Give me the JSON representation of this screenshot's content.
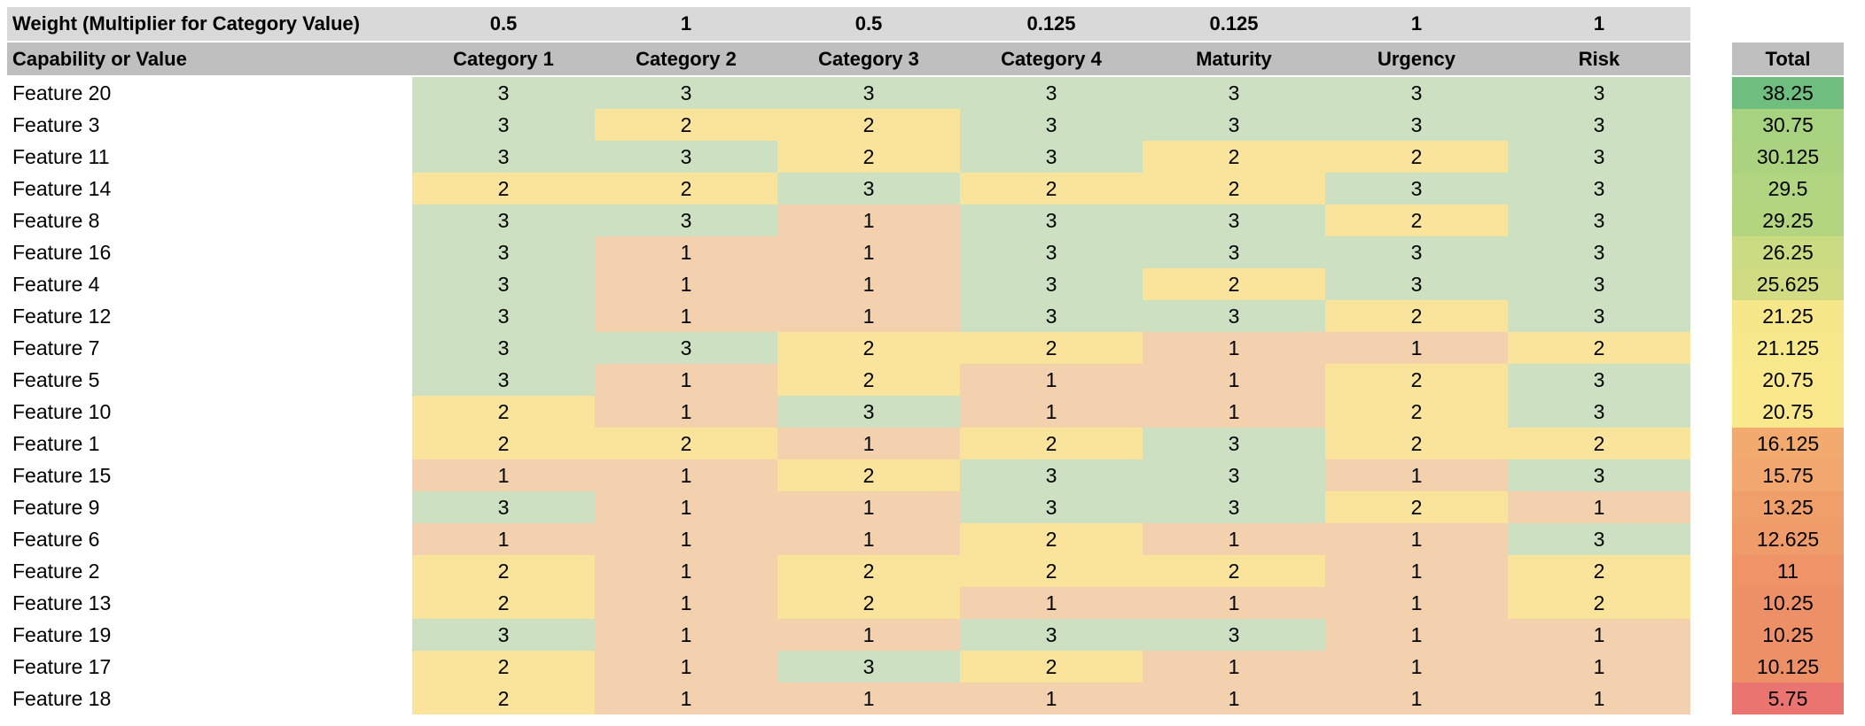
{
  "table": {
    "weight_row_label": "Weight (Multiplier for Category Value)",
    "capability_label": "Capability or Value",
    "weights": [
      "0.5",
      "1",
      "0.5",
      "0.125",
      "0.125",
      "1",
      "1"
    ],
    "columns": [
      "Category 1",
      "Category 2",
      "Category 3",
      "Category 4",
      "Maturity",
      "Urgency",
      "Risk"
    ],
    "total_label": "Total",
    "rows": [
      {
        "name": "Feature 20",
        "values": [
          3,
          3,
          3,
          3,
          3,
          3,
          3
        ],
        "total": "38.25",
        "total_color": "#6fbd7f"
      },
      {
        "name": "Feature 3",
        "values": [
          3,
          2,
          2,
          3,
          3,
          3,
          3
        ],
        "total": "30.75",
        "total_color": "#a7d27f"
      },
      {
        "name": "Feature 11",
        "values": [
          3,
          3,
          2,
          3,
          2,
          2,
          3
        ],
        "total": "30.125",
        "total_color": "#abd37f"
      },
      {
        "name": "Feature 14",
        "values": [
          2,
          2,
          3,
          2,
          2,
          3,
          3
        ],
        "total": "29.5",
        "total_color": "#b1d580"
      },
      {
        "name": "Feature 8",
        "values": [
          3,
          3,
          1,
          3,
          3,
          2,
          3
        ],
        "total": "29.25",
        "total_color": "#b3d580"
      },
      {
        "name": "Feature 16",
        "values": [
          3,
          1,
          1,
          3,
          3,
          3,
          3
        ],
        "total": "26.25",
        "total_color": "#cbdb81"
      },
      {
        "name": "Feature 4",
        "values": [
          3,
          1,
          1,
          3,
          2,
          3,
          3
        ],
        "total": "25.625",
        "total_color": "#d0dc82"
      },
      {
        "name": "Feature 12",
        "values": [
          3,
          1,
          1,
          3,
          3,
          2,
          3
        ],
        "total": "21.25",
        "total_color": "#f7e78b"
      },
      {
        "name": "Feature 7",
        "values": [
          3,
          3,
          2,
          2,
          1,
          1,
          2
        ],
        "total": "21.125",
        "total_color": "#f8e88c"
      },
      {
        "name": "Feature 5",
        "values": [
          3,
          1,
          2,
          1,
          1,
          2,
          3
        ],
        "total": "20.75",
        "total_color": "#f9e88c"
      },
      {
        "name": "Feature 10",
        "values": [
          2,
          1,
          3,
          1,
          1,
          2,
          3
        ],
        "total": "20.75",
        "total_color": "#f9e88c"
      },
      {
        "name": "Feature 1",
        "values": [
          2,
          2,
          1,
          2,
          3,
          2,
          2
        ],
        "total": "16.125",
        "total_color": "#f2aa6e"
      },
      {
        "name": "Feature 15",
        "values": [
          1,
          1,
          2,
          3,
          3,
          1,
          3
        ],
        "total": "15.75",
        "total_color": "#f1a76d"
      },
      {
        "name": "Feature 9",
        "values": [
          3,
          1,
          1,
          3,
          3,
          2,
          1
        ],
        "total": "13.25",
        "total_color": "#f09f6b"
      },
      {
        "name": "Feature 6",
        "values": [
          1,
          1,
          1,
          2,
          1,
          1,
          3
        ],
        "total": "12.625",
        "total_color": "#ef9c6a"
      },
      {
        "name": "Feature 2",
        "values": [
          2,
          1,
          2,
          2,
          2,
          1,
          2
        ],
        "total": "11",
        "total_color": "#ee9468"
      },
      {
        "name": "Feature 13",
        "values": [
          2,
          1,
          2,
          1,
          1,
          1,
          2
        ],
        "total": "10.25",
        "total_color": "#ed9067"
      },
      {
        "name": "Feature 19",
        "values": [
          3,
          1,
          1,
          3,
          3,
          1,
          1
        ],
        "total": "10.25",
        "total_color": "#ed9067"
      },
      {
        "name": "Feature 17",
        "values": [
          2,
          1,
          3,
          2,
          1,
          1,
          1
        ],
        "total": "10.125",
        "total_color": "#ed8f67"
      },
      {
        "name": "Feature 18",
        "values": [
          2,
          1,
          1,
          1,
          1,
          1,
          1
        ],
        "total": "5.75",
        "total_color": "#ea7470"
      }
    ]
  },
  "colors": {
    "header_row1_bg": "#d9d9d9",
    "header_row2_bg": "#bfbfbf",
    "score_colors": {
      "1": "#f3d0ae",
      "2": "#fae49c",
      "3": "#cde1c2"
    },
    "total_scale": {
      "min_color": "#ea7470",
      "mid_color": "#f9e88c",
      "max_color": "#6fbd7f"
    }
  }
}
